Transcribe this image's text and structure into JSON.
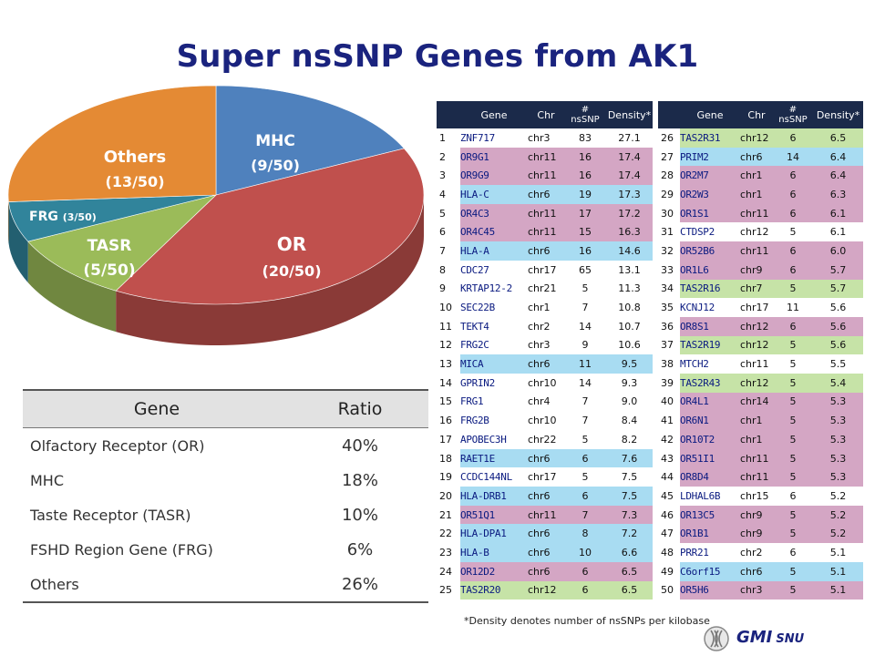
{
  "slide": {
    "title": "Super nsSNP Genes from AK1",
    "footnote": "*Density denotes number of nsSNPs per kilobase",
    "logo_text": "GMI",
    "logo_sub": "SNU",
    "logo_icon": "dna-chromosome-icon"
  },
  "chart_data": {
    "type": "pie",
    "style": "3d",
    "slices": [
      {
        "name": "MHC",
        "label": "MHC",
        "sublabel": "(9/50)",
        "value": 9,
        "color": "#4f81bd"
      },
      {
        "name": "OR",
        "label": "OR",
        "sublabel": "(20/50)",
        "value": 20,
        "color": "#c0504d"
      },
      {
        "name": "TASR",
        "label": "TASR",
        "sublabel": "(5/50)",
        "value": 5,
        "color": "#9bbb59"
      },
      {
        "name": "FRG",
        "label": "FRG",
        "sublabel": "(3/50)",
        "value": 3,
        "color": "#31849b"
      },
      {
        "name": "Others",
        "label": "Others",
        "sublabel": "(13/50)",
        "value": 13,
        "color": "#e48a34"
      }
    ]
  },
  "ratio_table": {
    "headers": [
      "Gene",
      "Ratio"
    ],
    "rows": [
      {
        "gene": "Olfactory Receptor (OR)",
        "ratio": "40%"
      },
      {
        "gene": "MHC",
        "ratio": "18%"
      },
      {
        "gene": "Taste Receptor  (TASR)",
        "ratio": "10%"
      },
      {
        "gene": "FSHD Region Gene (FRG)",
        "ratio": "6%"
      },
      {
        "gene": "Others",
        "ratio": "26%"
      }
    ]
  },
  "gene_table": {
    "headers": {
      "gene": "Gene",
      "chr": "Chr",
      "nssnp_hash": "#",
      "nssnp": "nsSNP",
      "density": "Density*"
    },
    "left": [
      {
        "idx": "1",
        "gene": "ZNF717",
        "chr": "chr3",
        "n": "83",
        "density": "27.1",
        "cat": "other"
      },
      {
        "idx": "2",
        "gene": "OR9G1",
        "chr": "chr11",
        "n": "16",
        "density": "17.4",
        "cat": "OR"
      },
      {
        "idx": "3",
        "gene": "OR9G9",
        "chr": "chr11",
        "n": "16",
        "density": "17.4",
        "cat": "OR"
      },
      {
        "idx": "4",
        "gene": "HLA-C",
        "chr": "chr6",
        "n": "19",
        "density": "17.3",
        "cat": "MHC"
      },
      {
        "idx": "5",
        "gene": "OR4C3",
        "chr": "chr11",
        "n": "17",
        "density": "17.2",
        "cat": "OR"
      },
      {
        "idx": "6",
        "gene": "OR4C45",
        "chr": "chr11",
        "n": "15",
        "density": "16.3",
        "cat": "OR"
      },
      {
        "idx": "7",
        "gene": "HLA-A",
        "chr": "chr6",
        "n": "16",
        "density": "14.6",
        "cat": "MHC"
      },
      {
        "idx": "8",
        "gene": "CDC27",
        "chr": "chr17",
        "n": "65",
        "density": "13.1",
        "cat": "other"
      },
      {
        "idx": "9",
        "gene": "KRTAP12-2",
        "chr": "chr21",
        "n": "5",
        "density": "11.3",
        "cat": "other"
      },
      {
        "idx": "10",
        "gene": "SEC22B",
        "chr": "chr1",
        "n": "7",
        "density": "10.8",
        "cat": "other"
      },
      {
        "idx": "11",
        "gene": "TEKT4",
        "chr": "chr2",
        "n": "14",
        "density": "10.7",
        "cat": "other"
      },
      {
        "idx": "12",
        "gene": "FRG2C",
        "chr": "chr3",
        "n": "9",
        "density": "10.6",
        "cat": "FRG"
      },
      {
        "idx": "13",
        "gene": "MICA",
        "chr": "chr6",
        "n": "11",
        "density": "9.5",
        "cat": "MHC"
      },
      {
        "idx": "14",
        "gene": "GPRIN2",
        "chr": "chr10",
        "n": "14",
        "density": "9.3",
        "cat": "other"
      },
      {
        "idx": "15",
        "gene": "FRG1",
        "chr": "chr4",
        "n": "7",
        "density": "9.0",
        "cat": "FRG"
      },
      {
        "idx": "16",
        "gene": "FRG2B",
        "chr": "chr10",
        "n": "7",
        "density": "8.4",
        "cat": "FRG"
      },
      {
        "idx": "17",
        "gene": "APOBEC3H",
        "chr": "chr22",
        "n": "5",
        "density": "8.2",
        "cat": "other"
      },
      {
        "idx": "18",
        "gene": "RAET1E",
        "chr": "chr6",
        "n": "6",
        "density": "7.6",
        "cat": "MHC"
      },
      {
        "idx": "19",
        "gene": "CCDC144NL",
        "chr": "chr17",
        "n": "5",
        "density": "7.5",
        "cat": "other"
      },
      {
        "idx": "20",
        "gene": "HLA-DRB1",
        "chr": "chr6",
        "n": "6",
        "density": "7.5",
        "cat": "MHC"
      },
      {
        "idx": "21",
        "gene": "OR51Q1",
        "chr": "chr11",
        "n": "7",
        "density": "7.3",
        "cat": "OR"
      },
      {
        "idx": "22",
        "gene": "HLA-DPA1",
        "chr": "chr6",
        "n": "8",
        "density": "7.2",
        "cat": "MHC"
      },
      {
        "idx": "23",
        "gene": "HLA-B",
        "chr": "chr6",
        "n": "10",
        "density": "6.6",
        "cat": "MHC"
      },
      {
        "idx": "24",
        "gene": "OR12D2",
        "chr": "chr6",
        "n": "6",
        "density": "6.5",
        "cat": "OR"
      },
      {
        "idx": "25",
        "gene": "TAS2R20",
        "chr": "chr12",
        "n": "6",
        "density": "6.5",
        "cat": "TASR"
      }
    ],
    "right": [
      {
        "idx": "26",
        "gene": "TAS2R31",
        "chr": "chr12",
        "n": "6",
        "density": "6.5",
        "cat": "TASR"
      },
      {
        "idx": "27",
        "gene": "PRIM2",
        "chr": "chr6",
        "n": "14",
        "density": "6.4",
        "cat": "MHC"
      },
      {
        "idx": "28",
        "gene": "OR2M7",
        "chr": "chr1",
        "n": "6",
        "density": "6.4",
        "cat": "OR"
      },
      {
        "idx": "29",
        "gene": "OR2W3",
        "chr": "chr1",
        "n": "6",
        "density": "6.3",
        "cat": "OR"
      },
      {
        "idx": "30",
        "gene": "OR1S1",
        "chr": "chr11",
        "n": "6",
        "density": "6.1",
        "cat": "OR"
      },
      {
        "idx": "31",
        "gene": "CTDSP2",
        "chr": "chr12",
        "n": "5",
        "density": "6.1",
        "cat": "other"
      },
      {
        "idx": "32",
        "gene": "OR52B6",
        "chr": "chr11",
        "n": "6",
        "density": "6.0",
        "cat": "OR"
      },
      {
        "idx": "33",
        "gene": "OR1L6",
        "chr": "chr9",
        "n": "6",
        "density": "5.7",
        "cat": "OR"
      },
      {
        "idx": "34",
        "gene": "TAS2R16",
        "chr": "chr7",
        "n": "5",
        "density": "5.7",
        "cat": "TASR"
      },
      {
        "idx": "35",
        "gene": "KCNJ12",
        "chr": "chr17",
        "n": "11",
        "density": "5.6",
        "cat": "other"
      },
      {
        "idx": "36",
        "gene": "OR8S1",
        "chr": "chr12",
        "n": "6",
        "density": "5.6",
        "cat": "OR"
      },
      {
        "idx": "37",
        "gene": "TAS2R19",
        "chr": "chr12",
        "n": "5",
        "density": "5.6",
        "cat": "TASR"
      },
      {
        "idx": "38",
        "gene": "MTCH2",
        "chr": "chr11",
        "n": "5",
        "density": "5.5",
        "cat": "other"
      },
      {
        "idx": "39",
        "gene": "TAS2R43",
        "chr": "chr12",
        "n": "5",
        "density": "5.4",
        "cat": "TASR"
      },
      {
        "idx": "40",
        "gene": "OR4L1",
        "chr": "chr14",
        "n": "5",
        "density": "5.3",
        "cat": "OR"
      },
      {
        "idx": "41",
        "gene": "OR6N1",
        "chr": "chr1",
        "n": "5",
        "density": "5.3",
        "cat": "OR"
      },
      {
        "idx": "42",
        "gene": "OR10T2",
        "chr": "chr1",
        "n": "5",
        "density": "5.3",
        "cat": "OR"
      },
      {
        "idx": "43",
        "gene": "OR51I1",
        "chr": "chr11",
        "n": "5",
        "density": "5.3",
        "cat": "OR"
      },
      {
        "idx": "44",
        "gene": "OR8D4",
        "chr": "chr11",
        "n": "5",
        "density": "5.3",
        "cat": "OR"
      },
      {
        "idx": "45",
        "gene": "LDHAL6B",
        "chr": "chr15",
        "n": "6",
        "density": "5.2",
        "cat": "other"
      },
      {
        "idx": "46",
        "gene": "OR13C5",
        "chr": "chr9",
        "n": "5",
        "density": "5.2",
        "cat": "OR"
      },
      {
        "idx": "47",
        "gene": "OR1B1",
        "chr": "chr9",
        "n": "5",
        "density": "5.2",
        "cat": "OR"
      },
      {
        "idx": "48",
        "gene": "PRR21",
        "chr": "chr2",
        "n": "6",
        "density": "5.1",
        "cat": "other"
      },
      {
        "idx": "49",
        "gene": "C6orf15",
        "chr": "chr6",
        "n": "5",
        "density": "5.1",
        "cat": "MHC"
      },
      {
        "idx": "50",
        "gene": "OR5H6",
        "chr": "chr3",
        "n": "5",
        "density": "5.1",
        "cat": "OR"
      }
    ]
  }
}
